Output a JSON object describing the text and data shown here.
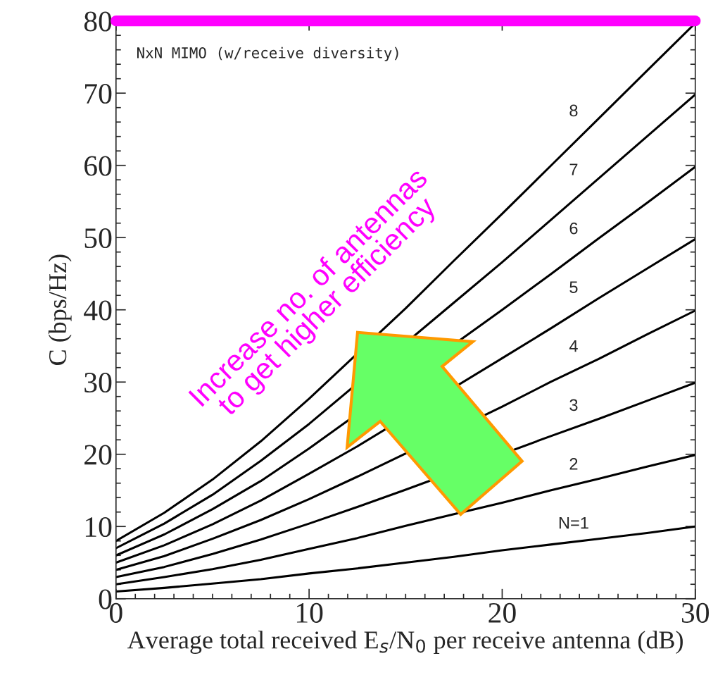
{
  "chart_data": {
    "type": "line",
    "xlabel": "Average total received E$_{s}$/N$_{0}$ per receive antenna (dB)",
    "ylabel": "C (bps/Hz)",
    "x": [
      0,
      2.5,
      5,
      7.5,
      10,
      12.5,
      15,
      17.5,
      20,
      22.5,
      25,
      27.5,
      30
    ],
    "series": [
      {
        "name": "N=1",
        "color": "#000000",
        "values": [
          1,
          1.5,
          2.1,
          2.7,
          3.5,
          4.2,
          5,
          5.8,
          6.7,
          7.5,
          8.3,
          9.1,
          10
        ]
      },
      {
        "name": "2",
        "color": "#000000",
        "values": [
          2,
          3,
          4.1,
          5.4,
          6.9,
          8.4,
          10.1,
          11.7,
          13.3,
          15,
          16.6,
          18.3,
          19.9
        ]
      },
      {
        "name": "3",
        "color": "#000000",
        "x": [
          0,
          2.5,
          5,
          7.5,
          10,
          12.5,
          15,
          22.5,
          25,
          27.5,
          30
        ],
        "values": [
          3,
          4.4,
          6.2,
          8.2,
          10.4,
          12.7,
          15.1,
          22.5,
          24.9,
          27.4,
          29.9
        ]
      },
      {
        "name": "4",
        "color": "#000000",
        "x": [
          0,
          2.5,
          5,
          7.5,
          10,
          12.5,
          15,
          20,
          22.5,
          25,
          27.5,
          30
        ],
        "values": [
          4,
          5.9,
          8.3,
          10.9,
          13.8,
          16.9,
          20.1,
          26.6,
          30,
          33.2,
          36.6,
          39.9
        ]
      },
      {
        "name": "5",
        "color": "#000000",
        "x": [
          0,
          2.5,
          5,
          7.5,
          10,
          12.5,
          20,
          22.5,
          25,
          27.5,
          30
        ],
        "values": [
          5,
          7.4,
          10.3,
          13.6,
          17.3,
          21.1,
          33.3,
          37.4,
          41.6,
          45.7,
          49.8
        ]
      },
      {
        "name": "6",
        "color": "#000000",
        "x": [
          0,
          2.5,
          5,
          7.5,
          10,
          20,
          22.5,
          25,
          27.5,
          30
        ],
        "values": [
          6,
          8.9,
          12.4,
          16.3,
          20.8,
          40,
          44.9,
          49.9,
          54.8,
          59.8
        ]
      },
      {
        "name": "7",
        "color": "#000000",
        "x": [
          0,
          2.5,
          5,
          7.5,
          10,
          17.5,
          20,
          22.5,
          25,
          27.5,
          30
        ],
        "values": [
          7,
          10.4,
          14.4,
          19.1,
          24.2,
          41,
          46.6,
          52.4,
          58.2,
          64,
          69.8
        ]
      },
      {
        "name": "8",
        "color": "#000000",
        "x": [
          0,
          2.5,
          5,
          7.5,
          10,
          15,
          17.5,
          20,
          22.5,
          25,
          27.5,
          30
        ],
        "values": [
          8,
          11.9,
          16.5,
          21.8,
          27.7,
          40.2,
          46.8,
          53.3,
          59.9,
          66.5,
          73.1,
          79.7
        ]
      }
    ],
    "xlim": [
      0,
      30
    ],
    "xticks": [
      0,
      10,
      20,
      30
    ],
    "ylim": [
      0,
      80
    ],
    "yticks": [
      0,
      10,
      20,
      30,
      40,
      50,
      60,
      70,
      80
    ],
    "ref_lines": [
      {
        "axis": "y",
        "value": 80,
        "color": "#ff00ff"
      }
    ],
    "annotations": [
      "NxN MIMO (w/receive diversity)",
      "Increase no. of antennas\nto get higher efficiency"
    ],
    "grid": false,
    "legend": false,
    "marker": "none",
    "line_style": "solid"
  }
}
